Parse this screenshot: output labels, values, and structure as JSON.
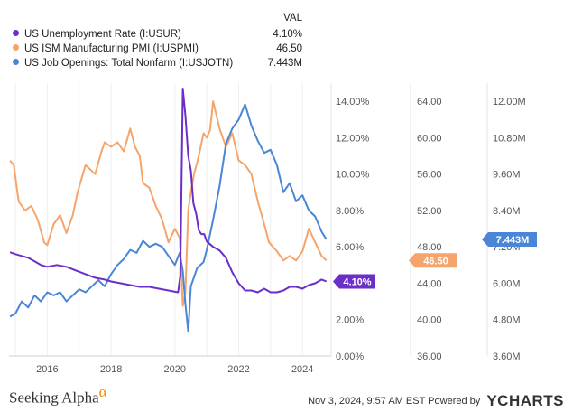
{
  "legend": {
    "header": "VAL",
    "items": [
      {
        "label": "US Unemployment Rate (I:USUR)",
        "value": "4.10%",
        "color": "#6a2fc9"
      },
      {
        "label": "US ISM Manufacturing PMI (I:USPMI)",
        "value": "46.50",
        "color": "#f5a46c"
      },
      {
        "label": "US Job Openings: Total Nonfarm (I:USJOTN)",
        "value": "7.443M",
        "color": "#4a86d8"
      }
    ]
  },
  "chart_data": {
    "type": "line",
    "x_range": [
      2014.8,
      2024.9
    ],
    "x_ticks": [
      "2016",
      "2018",
      "2020",
      "2022",
      "2024"
    ],
    "axes": [
      {
        "name": "unemployment",
        "range": [
          0,
          15
        ],
        "ticks": [
          "0.00%",
          "2.00%",
          "4.00%",
          "6.00%",
          "8.00%",
          "10.00%",
          "12.00%",
          "14.00%"
        ]
      },
      {
        "name": "pmi",
        "range": [
          36,
          66
        ],
        "ticks": [
          "36.00",
          "40.00",
          "44.00",
          "48.00",
          "52.00",
          "56.00",
          "60.00",
          "64.00"
        ]
      },
      {
        "name": "job_openings",
        "range": [
          3.6,
          12.6
        ],
        "ticks": [
          "3.60M",
          "4.80M",
          "6.00M",
          "7.20M",
          "8.40M",
          "9.60M",
          "10.80M",
          "12.00M"
        ]
      }
    ],
    "series": [
      {
        "name": "US Unemployment Rate (I:USUR)",
        "axis": 0,
        "color": "#6a2fc9",
        "last_label": "4.10%",
        "x": [
          2014.83,
          2015.0,
          2015.2,
          2015.4,
          2015.6,
          2015.8,
          2016.0,
          2016.3,
          2016.6,
          2016.9,
          2017.2,
          2017.5,
          2017.8,
          2018.0,
          2018.3,
          2018.6,
          2018.9,
          2019.2,
          2019.5,
          2019.8,
          2020.1,
          2020.17,
          2020.25,
          2020.33,
          2020.42,
          2020.5,
          2020.58,
          2020.67,
          2020.75,
          2020.83,
          2020.92,
          2021.0,
          2021.2,
          2021.4,
          2021.6,
          2021.8,
          2022.0,
          2022.2,
          2022.4,
          2022.6,
          2022.8,
          2023.0,
          2023.2,
          2023.4,
          2023.6,
          2023.8,
          2024.0,
          2024.2,
          2024.4,
          2024.6,
          2024.75
        ],
        "y": [
          5.7,
          5.6,
          5.5,
          5.4,
          5.2,
          5.0,
          4.9,
          5.0,
          4.9,
          4.7,
          4.5,
          4.3,
          4.2,
          4.1,
          4.0,
          3.9,
          3.8,
          3.8,
          3.7,
          3.6,
          3.5,
          4.4,
          14.7,
          13.2,
          11.0,
          10.2,
          8.4,
          7.8,
          6.9,
          6.7,
          6.7,
          6.3,
          6.0,
          5.8,
          5.4,
          4.6,
          4.0,
          3.6,
          3.6,
          3.5,
          3.7,
          3.5,
          3.5,
          3.6,
          3.8,
          3.8,
          3.7,
          3.9,
          4.0,
          4.2,
          4.1
        ]
      },
      {
        "name": "US ISM Manufacturing PMI (I:USPMI)",
        "axis": 1,
        "color": "#f5a46c",
        "last_label": "46.50",
        "x": [
          2014.83,
          2014.95,
          2015.1,
          2015.3,
          2015.5,
          2015.7,
          2015.9,
          2016.0,
          2016.2,
          2016.4,
          2016.6,
          2016.8,
          2016.95,
          2017.2,
          2017.5,
          2017.7,
          2017.8,
          2018.0,
          2018.2,
          2018.4,
          2018.6,
          2018.75,
          2018.9,
          2019.0,
          2019.2,
          2019.4,
          2019.6,
          2019.8,
          2020.0,
          2020.15,
          2020.25,
          2020.33,
          2020.42,
          2020.5,
          2020.6,
          2020.75,
          2020.9,
          2021.0,
          2021.1,
          2021.2,
          2021.4,
          2021.6,
          2021.8,
          2022.0,
          2022.2,
          2022.4,
          2022.6,
          2022.8,
          2022.95,
          2023.2,
          2023.4,
          2023.6,
          2023.8,
          2024.0,
          2024.2,
          2024.4,
          2024.6,
          2024.75
        ],
        "y": [
          57.5,
          57.0,
          53.0,
          52.0,
          52.5,
          51.0,
          48.5,
          48.2,
          50.5,
          51.5,
          49.5,
          51.5,
          54.0,
          57.0,
          56.0,
          58.5,
          59.5,
          59.0,
          59.5,
          58.5,
          61.0,
          59.0,
          58.0,
          55.0,
          54.5,
          52.5,
          51.0,
          48.5,
          50.0,
          49.0,
          41.5,
          43.0,
          52.0,
          54.0,
          56.0,
          58.0,
          60.5,
          60.0,
          60.8,
          64.0,
          61.0,
          59.0,
          60.5,
          57.5,
          57.0,
          56.0,
          53.0,
          50.5,
          48.5,
          47.5,
          46.5,
          47.0,
          46.5,
          47.5,
          50.0,
          48.5,
          47.0,
          46.5
        ]
      },
      {
        "name": "US Job Openings: Total Nonfarm (I:USJOTN)",
        "axis": 2,
        "color": "#4a86d8",
        "last_label": "7.443M",
        "x": [
          2014.83,
          2015.0,
          2015.2,
          2015.4,
          2015.6,
          2015.8,
          2016.0,
          2016.2,
          2016.4,
          2016.6,
          2016.8,
          2017.0,
          2017.2,
          2017.4,
          2017.6,
          2017.8,
          2018.0,
          2018.2,
          2018.4,
          2018.6,
          2018.8,
          2019.0,
          2019.2,
          2019.4,
          2019.6,
          2019.8,
          2020.0,
          2020.15,
          2020.25,
          2020.33,
          2020.42,
          2020.5,
          2020.7,
          2020.9,
          2021.0,
          2021.2,
          2021.4,
          2021.6,
          2021.8,
          2022.0,
          2022.2,
          2022.4,
          2022.6,
          2022.8,
          2023.0,
          2023.2,
          2023.4,
          2023.6,
          2023.8,
          2024.0,
          2024.2,
          2024.4,
          2024.6,
          2024.75
        ],
        "y": [
          4.9,
          5.0,
          5.4,
          5.2,
          5.6,
          5.4,
          5.7,
          5.6,
          5.7,
          5.4,
          5.6,
          5.8,
          5.7,
          5.9,
          6.1,
          5.9,
          6.3,
          6.6,
          6.8,
          7.1,
          7.0,
          7.4,
          7.2,
          7.3,
          7.2,
          6.9,
          6.6,
          7.0,
          6.4,
          5.3,
          4.4,
          5.9,
          6.5,
          6.7,
          7.1,
          8.1,
          9.2,
          10.6,
          11.1,
          11.4,
          11.9,
          11.2,
          10.7,
          10.3,
          10.4,
          9.9,
          9.0,
          9.3,
          8.7,
          8.9,
          8.4,
          8.2,
          7.7,
          7.443
        ]
      }
    ]
  },
  "footer": {
    "brand": "Seeking Alpha",
    "brand_mark": "α",
    "timestamp": "Nov 3, 2024, 9:57 AM EST Powered by",
    "logo": "YCHARTS"
  }
}
